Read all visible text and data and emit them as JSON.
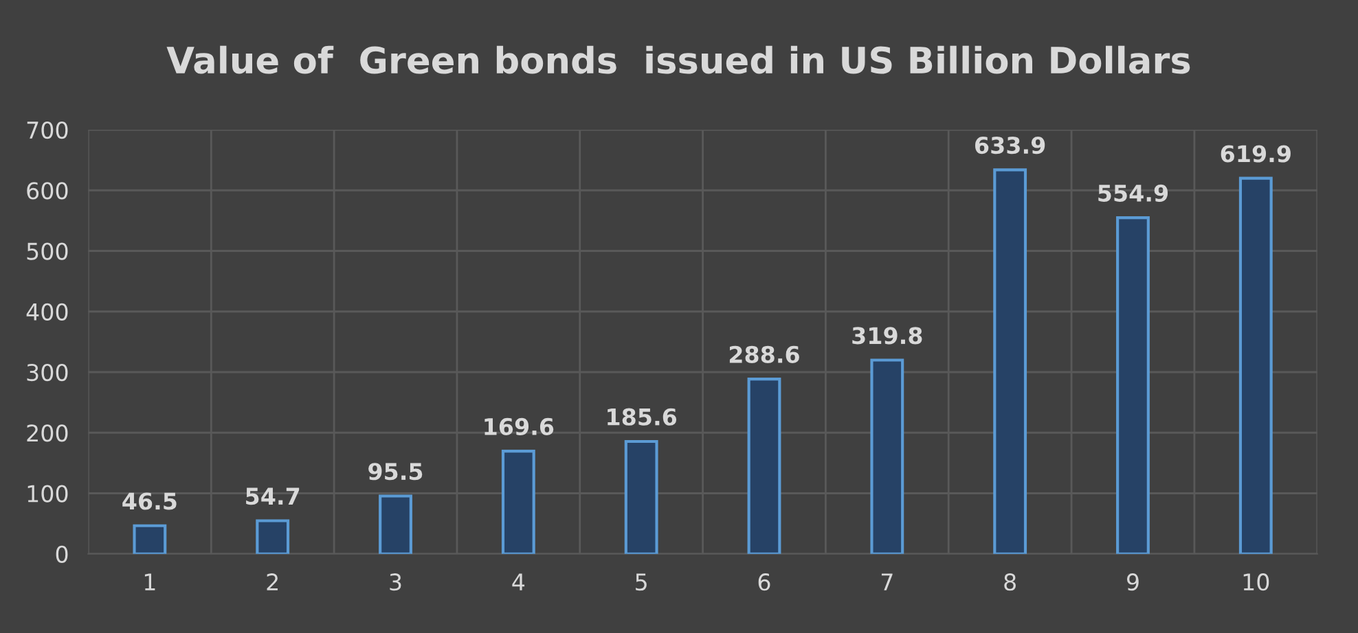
{
  "chart_data": {
    "type": "bar",
    "title": "Value of  Green bonds  issued in US Billion Dollars",
    "categories": [
      "1",
      "2",
      "3",
      "4",
      "5",
      "6",
      "7",
      "8",
      "9",
      "10"
    ],
    "values": [
      46.5,
      54.7,
      95.5,
      169.6,
      185.6,
      288.6,
      319.8,
      633.9,
      554.9,
      619.9
    ],
    "color": "#264266",
    "ylim": [
      0,
      700
    ],
    "yticks": [
      0,
      100,
      200,
      300,
      400,
      500,
      600,
      700
    ],
    "grid": true,
    "data_labels": true
  }
}
